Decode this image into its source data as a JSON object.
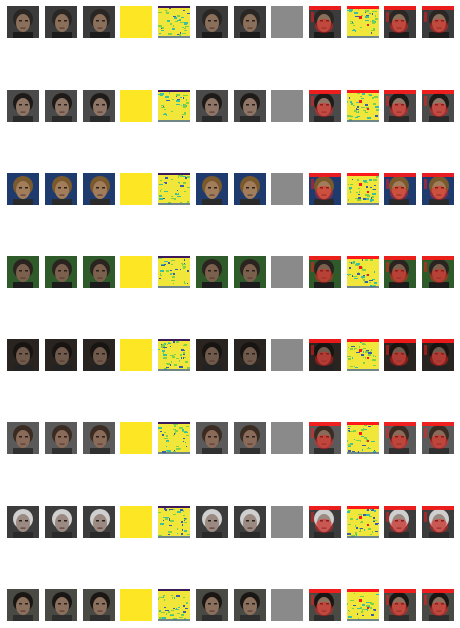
{
  "grid": {
    "rows": 8,
    "columns": 12,
    "column_kinds": [
      "face-photo",
      "face-photo",
      "face-photo",
      "solid-yellow",
      "heatmap",
      "face-photo",
      "face-photo",
      "solid-gray",
      "face-photo-red-overlay",
      "heatmap-with-red-marks",
      "face-photo-red-overlay",
      "face-photo-red-overlay"
    ]
  },
  "colors": {
    "background": "#ffffff",
    "solid_yellow": "#fde725",
    "solid_gray": "#8a8a8a",
    "heatmap_base": "#f1e63a",
    "heatmap_green": "#7ed04b",
    "heatmap_teal": "#3bbfa0",
    "heatmap_blue": "#3b5ea8",
    "heatmap_purple": "#3b1a5a",
    "red_mark": "#ff1a1a"
  },
  "rows": [
    {
      "palette": {
        "bg": "#3b3b3b",
        "skin": "#8a6f5a",
        "hair": "#2a2624",
        "shirt": "#1c1c1c"
      }
    },
    {
      "palette": {
        "bg": "#4a4a4a",
        "skin": "#8f7566",
        "hair": "#1e1a18",
        "shirt": "#2a2a2a"
      }
    },
    {
      "palette": {
        "bg": "#1f3b6e",
        "skin": "#a27d5c",
        "hair": "#7a5a2c",
        "shirt": "#2a2a2a"
      }
    },
    {
      "palette": {
        "bg": "#2f5a2a",
        "skin": "#7b614d",
        "hair": "#2a2320",
        "shirt": "#1c1c1c"
      }
    },
    {
      "palette": {
        "bg": "#2a2420",
        "skin": "#6f5a4c",
        "hair": "#171412",
        "shirt": "#222222"
      }
    },
    {
      "palette": {
        "bg": "#5a5a5a",
        "skin": "#8a6a58",
        "hair": "#3a2c22",
        "shirt": "#303030"
      }
    },
    {
      "palette": {
        "bg": "#3c3c3c",
        "skin": "#9a8a82",
        "hair": "#cfcfcf",
        "shirt": "#2a2a2a"
      }
    },
    {
      "palette": {
        "bg": "#4a4a44",
        "skin": "#8c705e",
        "hair": "#1a1614",
        "shirt": "#2e2e2e"
      }
    }
  ]
}
